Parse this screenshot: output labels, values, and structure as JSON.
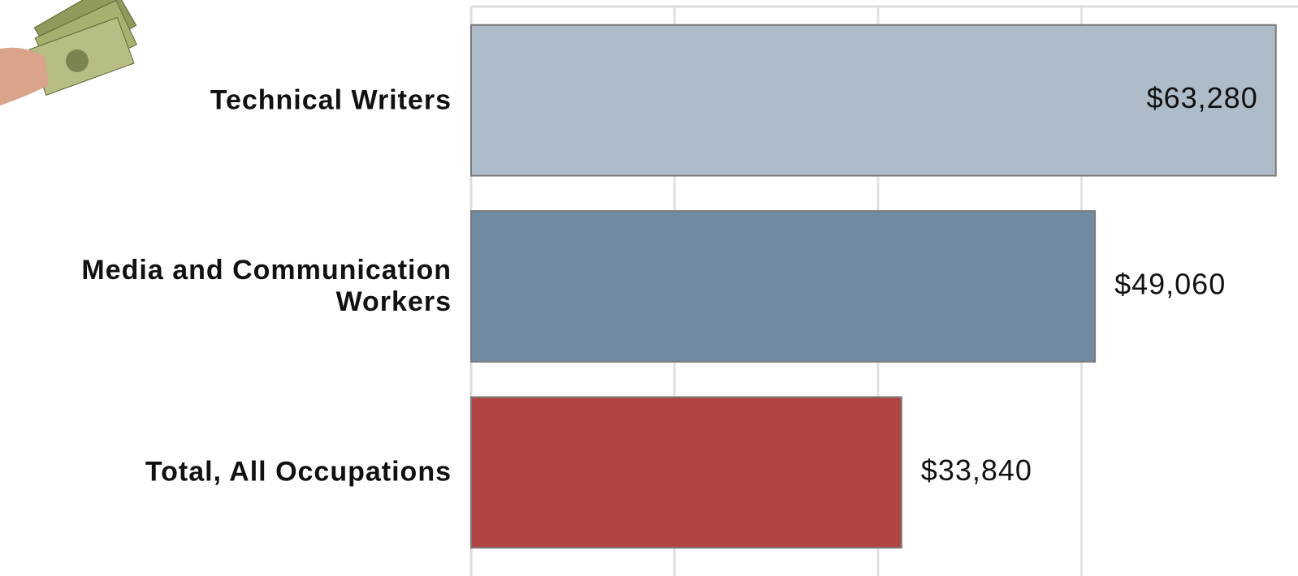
{
  "chart_data": {
    "type": "barh",
    "categories": [
      "Technical Writers",
      "Media and Communication Workers",
      "Total, All Occupations"
    ],
    "values": [
      63280,
      49060,
      33840
    ],
    "value_labels": [
      "$63,280",
      "$49,060",
      "$33,840"
    ],
    "colors": [
      "#adbcc8",
      "#708ba1",
      "#b34242"
    ],
    "xlim": [
      0,
      64000
    ],
    "xticks": [
      16000,
      32000,
      48000
    ],
    "grid": true
  }
}
